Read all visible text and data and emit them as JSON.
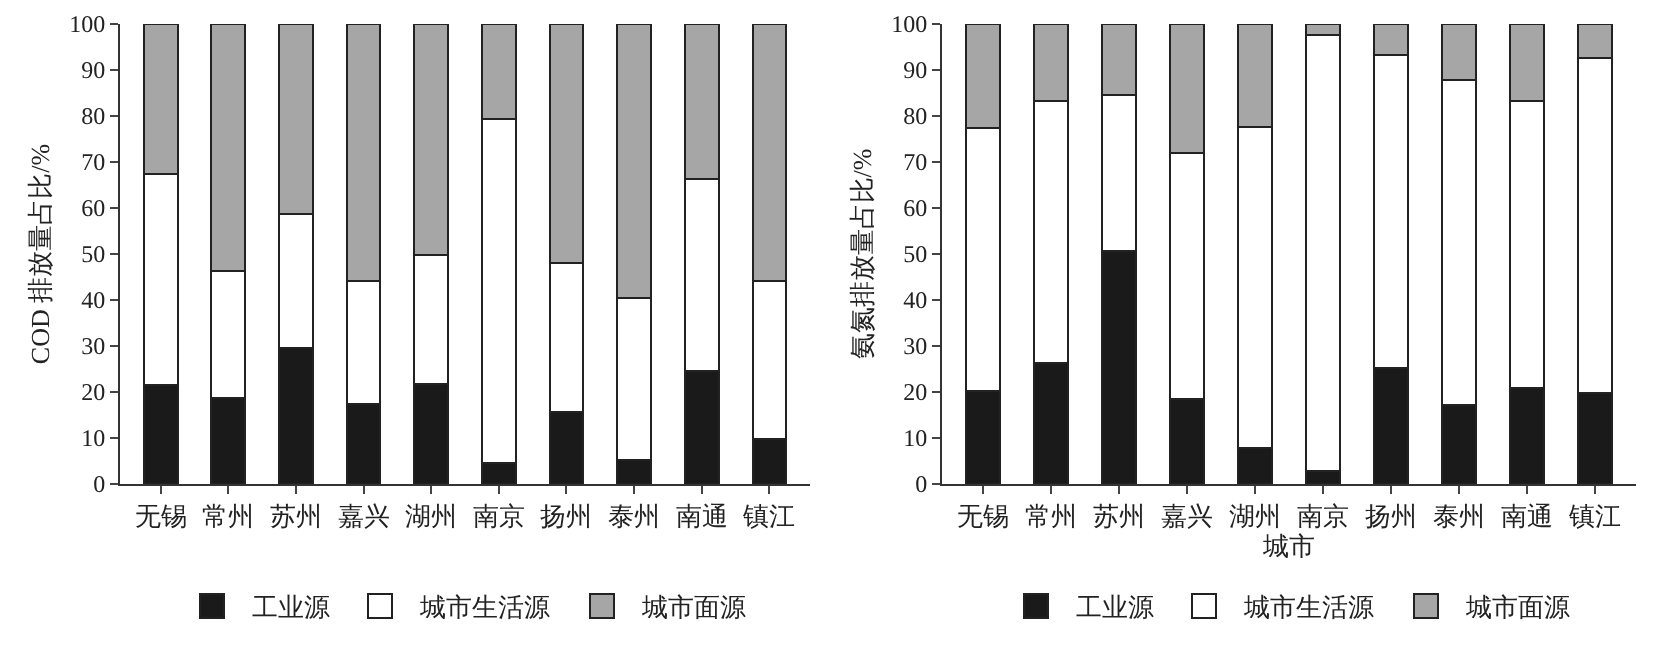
{
  "chart_data": [
    {
      "type": "bar",
      "stacked": true,
      "ylabel": "COD 排放量占比/%",
      "categories": [
        "无锡",
        "常州",
        "苏州",
        "嘉兴",
        "湖州",
        "南京",
        "扬州",
        "泰州",
        "南通",
        "镇江"
      ],
      "ylim": [
        0,
        100
      ],
      "yticks": [
        0,
        10,
        20,
        30,
        40,
        50,
        60,
        70,
        80,
        90,
        100
      ],
      "grid": false,
      "legend": "bottom",
      "series": [
        {
          "name": "工业源",
          "color": "#1a1a1a",
          "values": [
            21.5,
            18.7,
            29.5,
            17.3,
            21.7,
            4.6,
            15.7,
            5.2,
            24.6,
            9.8
          ]
        },
        {
          "name": "城市生活源",
          "color": "#ffffff",
          "values": [
            45.8,
            27.6,
            29.2,
            26.9,
            28.0,
            74.8,
            32.4,
            35.3,
            41.6,
            34.3
          ]
        },
        {
          "name": "城市面源",
          "color": "#a6a6a6",
          "values": [
            32.7,
            53.7,
            41.3,
            55.8,
            50.3,
            20.6,
            51.9,
            59.5,
            33.8,
            55.9
          ]
        }
      ]
    },
    {
      "type": "bar",
      "stacked": true,
      "xlabel": "城市",
      "ylabel": "氨氮排放量占比/%",
      "categories": [
        "无锡",
        "常州",
        "苏州",
        "嘉兴",
        "湖州",
        "南京",
        "扬州",
        "泰州",
        "南通",
        "镇江"
      ],
      "ylim": [
        0,
        100
      ],
      "yticks": [
        0,
        10,
        20,
        30,
        40,
        50,
        60,
        70,
        80,
        90,
        100
      ],
      "grid": false,
      "legend": "bottom",
      "series": [
        {
          "name": "工业源",
          "color": "#1a1a1a",
          "values": [
            20.2,
            26.3,
            50.7,
            18.4,
            7.9,
            2.8,
            25.3,
            17.2,
            20.8,
            19.7
          ]
        },
        {
          "name": "城市生活源",
          "color": "#ffffff",
          "values": [
            57.1,
            57.0,
            33.8,
            53.6,
            69.8,
            94.8,
            68.0,
            70.7,
            62.4,
            73.0
          ]
        },
        {
          "name": "城市面源",
          "color": "#a6a6a6",
          "values": [
            22.7,
            16.7,
            15.5,
            28.0,
            22.3,
            2.4,
            6.7,
            12.1,
            16.8,
            7.3
          ]
        }
      ]
    }
  ]
}
